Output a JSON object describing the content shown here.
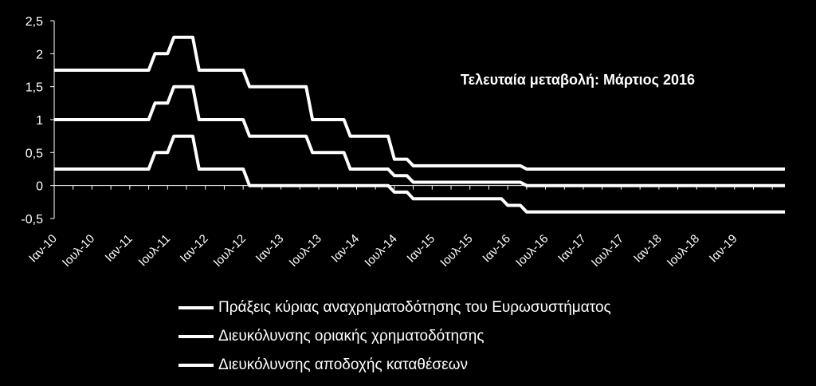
{
  "chart_data": {
    "type": "line",
    "title": "",
    "annotation": "Τελευταία μεταβολή: Μάρτιος 2016",
    "xlabel": "",
    "ylabel": "",
    "ylim": [
      -0.5,
      2.5
    ],
    "yticks": [
      "2,5",
      "2",
      "1,5",
      "1",
      "0,5",
      "0",
      "-0,5"
    ],
    "ytick_values": [
      2.5,
      2,
      1.5,
      1,
      0.5,
      0,
      -0.5
    ],
    "xticks": [
      "Ιαν-10",
      "Ιουλ-10",
      "Ιαν-11",
      "Ιουλ-11",
      "Ιαν-12",
      "Ιουλ-12",
      "Ιαν-13",
      "Ιουλ-13",
      "Ιαν-14",
      "Ιουλ-14",
      "Ιαν-15",
      "Ιουλ-15",
      "Ιαν-16",
      "Ιουλ-16",
      "Ιαν-17",
      "Ιουλ-17",
      "Ιαν-18",
      "Ιουλ-18",
      "Ιαν-19"
    ],
    "xlim": [
      "2010-01",
      "2019-09"
    ],
    "grid": false,
    "legend_position": "bottom",
    "color": "#ffffff",
    "series": [
      {
        "name": "Πράξεις κύριας αναχρηματοδότησης του Ευρωσυστήματος",
        "x": [
          "2010-01",
          "2011-04",
          "2011-05",
          "2011-07",
          "2011-08",
          "2011-11",
          "2011-12",
          "2012-07",
          "2012-08",
          "2013-05",
          "2013-06",
          "2013-11",
          "2013-12",
          "2014-06",
          "2014-07",
          "2014-09",
          "2014-10",
          "2016-03",
          "2016-04",
          "2019-09"
        ],
        "y": [
          1.0,
          1.0,
          1.25,
          1.25,
          1.5,
          1.5,
          1.0,
          1.0,
          0.75,
          0.75,
          0.5,
          0.5,
          0.25,
          0.25,
          0.15,
          0.15,
          0.05,
          0.05,
          0.0,
          0.0
        ]
      },
      {
        "name": "Διευκόλυνσης οριακής χρηματοδότησης",
        "x": [
          "2010-01",
          "2011-04",
          "2011-05",
          "2011-07",
          "2011-08",
          "2011-11",
          "2011-12",
          "2012-07",
          "2012-08",
          "2013-05",
          "2013-06",
          "2013-11",
          "2013-12",
          "2014-06",
          "2014-07",
          "2014-09",
          "2014-10",
          "2016-03",
          "2016-04",
          "2019-09"
        ],
        "y": [
          1.75,
          1.75,
          2.0,
          2.0,
          2.25,
          2.25,
          1.75,
          1.75,
          1.5,
          1.5,
          1.0,
          1.0,
          0.75,
          0.75,
          0.4,
          0.4,
          0.3,
          0.3,
          0.25,
          0.25
        ]
      },
      {
        "name": "Διευκόλυνσης αποδοχής καταθέσεων",
        "x": [
          "2010-01",
          "2011-04",
          "2011-05",
          "2011-07",
          "2011-08",
          "2011-11",
          "2011-12",
          "2012-07",
          "2012-08",
          "2014-06",
          "2014-07",
          "2014-09",
          "2014-10",
          "2015-12",
          "2016-01",
          "2016-03",
          "2016-04",
          "2019-09"
        ],
        "y": [
          0.25,
          0.25,
          0.5,
          0.5,
          0.75,
          0.75,
          0.25,
          0.25,
          0.0,
          0.0,
          -0.1,
          -0.1,
          -0.2,
          -0.2,
          -0.3,
          -0.3,
          -0.4,
          -0.4
        ]
      }
    ]
  }
}
